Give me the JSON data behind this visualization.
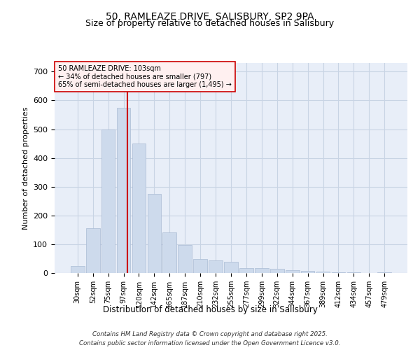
{
  "title_line1": "50, RAMLEAZE DRIVE, SALISBURY, SP2 9PA",
  "title_line2": "Size of property relative to detached houses in Salisbury",
  "xlabel": "Distribution of detached houses by size in Salisbury",
  "ylabel": "Number of detached properties",
  "bar_labels": [
    "30sqm",
    "52sqm",
    "75sqm",
    "97sqm",
    "120sqm",
    "142sqm",
    "165sqm",
    "187sqm",
    "210sqm",
    "232sqm",
    "255sqm",
    "277sqm",
    "299sqm",
    "322sqm",
    "344sqm",
    "367sqm",
    "389sqm",
    "412sqm",
    "434sqm",
    "457sqm",
    "479sqm"
  ],
  "bar_values": [
    25,
    155,
    500,
    575,
    450,
    275,
    140,
    98,
    48,
    45,
    40,
    18,
    17,
    14,
    10,
    8,
    5,
    3,
    2,
    1,
    2
  ],
  "bar_color": "#cddaec",
  "bar_edgecolor": "#aabbd4",
  "grid_color": "#c8d4e4",
  "background_color": "#e8eef8",
  "vline_color": "#cc0000",
  "vline_pos": 3.26,
  "annotation_text": "50 RAMLEAZE DRIVE: 103sqm\n← 34% of detached houses are smaller (797)\n65% of semi-detached houses are larger (1,495) →",
  "annotation_box_facecolor": "#fff0f0",
  "annotation_box_edgecolor": "#cc0000",
  "ylim": [
    0,
    730
  ],
  "yticks": [
    0,
    100,
    200,
    300,
    400,
    500,
    600,
    700
  ],
  "footer_line1": "Contains HM Land Registry data © Crown copyright and database right 2025.",
  "footer_line2": "Contains public sector information licensed under the Open Government Licence v3.0."
}
